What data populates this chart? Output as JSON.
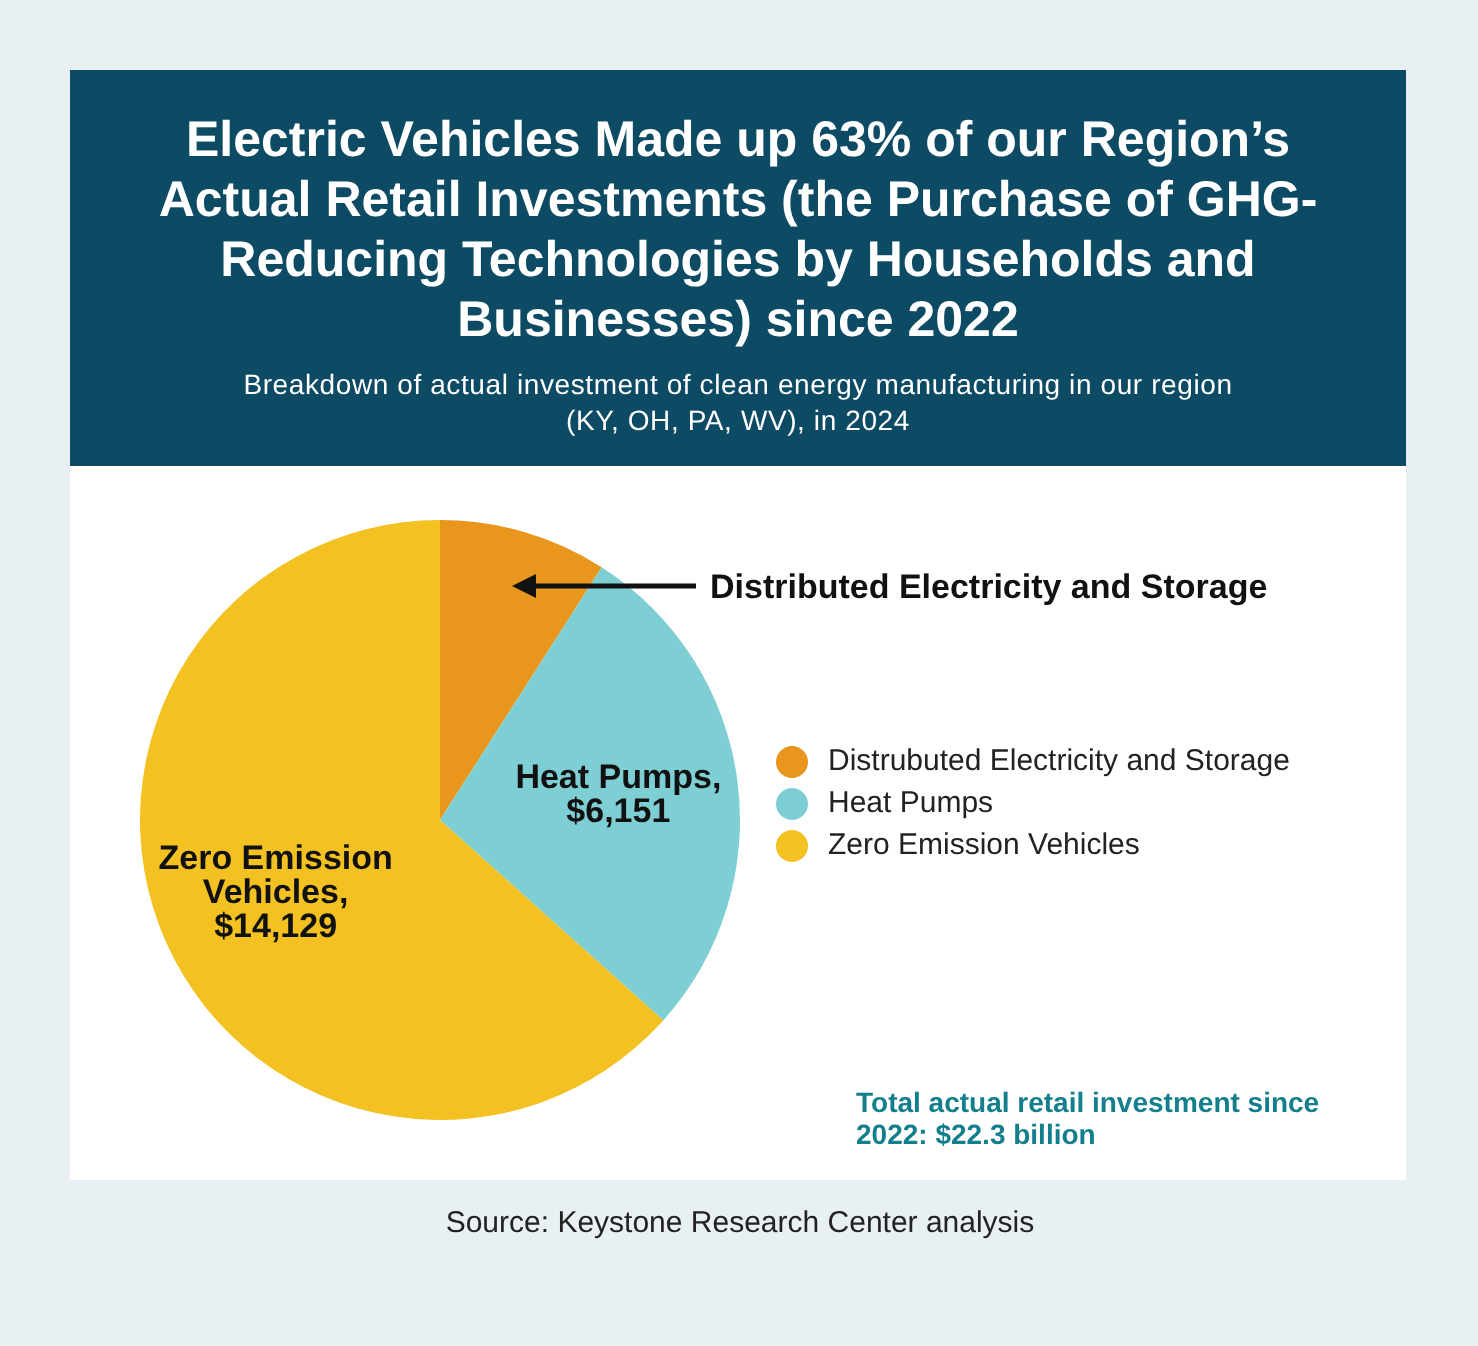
{
  "chart_data": {
    "type": "pie",
    "title": "Electric Vehicles Made up 63% of our Region’s Actual Retail Investments (the Purchase of GHG-Reducing Technologies by Households and Businesses) since 2022",
    "subtitle": "Breakdown of actual investment of clean energy manufacturing in our region (KY, OH, PA, WV), in 2024",
    "categories": [
      "Distrubuted Electricity and Storage",
      "Heat Pumps",
      "Zero Emission Vehicles"
    ],
    "values": [
      2020,
      6151,
      14129
    ],
    "colors": [
      "#e8961e",
      "#7ecfd4",
      "#f3c122"
    ],
    "value_labels": [
      null,
      "Heat Pumps, $6,151",
      "Zero Emission Vehicles, $14,129"
    ],
    "legend": "right",
    "annotations": [
      "Distributed Electricity and Storage",
      "Total actual retail investment since 2022: $22.3 billion",
      "Source: Keystone Research Center analysis"
    ]
  }
}
